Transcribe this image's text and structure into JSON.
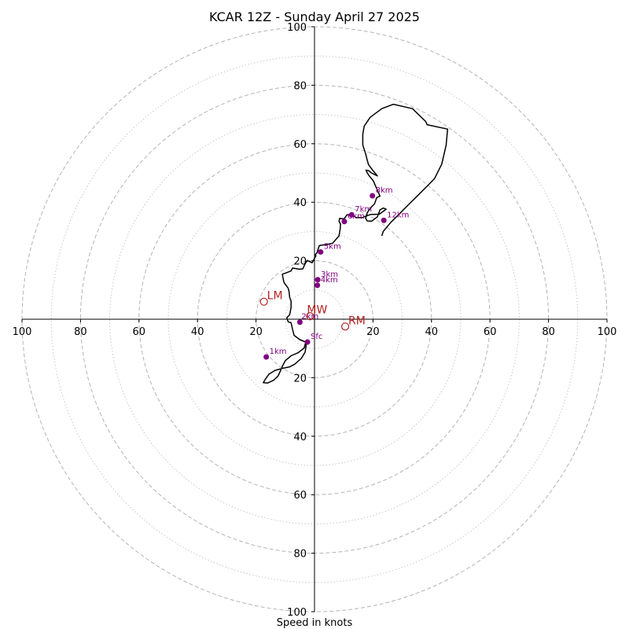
{
  "chart_data": {
    "type": "line",
    "title": "KCAR 12Z - Sunday April 27 2025",
    "xlabel": "Speed in knots",
    "ylabel": "",
    "xlim": [
      -100,
      100
    ],
    "ylim": [
      -100,
      100
    ],
    "major_rings": [
      20,
      40,
      60,
      80,
      100
    ],
    "minor_rings": [
      10,
      30,
      50,
      70,
      90
    ],
    "x_ticks": [
      {
        "v": -100,
        "label": "100"
      },
      {
        "v": -80,
        "label": "80"
      },
      {
        "v": -60,
        "label": "60"
      },
      {
        "v": -40,
        "label": "40"
      },
      {
        "v": -20,
        "label": "20"
      },
      {
        "v": 20,
        "label": "20"
      },
      {
        "v": 40,
        "label": "40"
      },
      {
        "v": 60,
        "label": "60"
      },
      {
        "v": 80,
        "label": "80"
      },
      {
        "v": 100,
        "label": "100"
      }
    ],
    "y_ticks": [
      {
        "v": 100,
        "label": "100"
      },
      {
        "v": 80,
        "label": "80"
      },
      {
        "v": 60,
        "label": "60"
      },
      {
        "v": 40,
        "label": "40"
      },
      {
        "v": 20,
        "label": "20"
      },
      {
        "v": -20,
        "label": "20"
      },
      {
        "v": -40,
        "label": "40"
      },
      {
        "v": -60,
        "label": "60"
      },
      {
        "v": -80,
        "label": "80"
      },
      {
        "v": -100,
        "label": "100"
      }
    ],
    "hodograph": {
      "color": "#000000",
      "x": [
        -2.4,
        -2.8,
        -3.2,
        -4.5,
        -6.8,
        -8.5,
        -11,
        -13.5,
        -15.6,
        -16.8,
        -17.5,
        -16,
        -14,
        -12.5,
        -11.6,
        -11,
        -10,
        -8,
        -5.5,
        -3.5,
        -3,
        -5,
        -7,
        -7.5,
        -8,
        -9,
        -9.5,
        -8.5,
        -8,
        -8,
        -8.5,
        -8.7,
        -9,
        -9.5,
        -10,
        -10.5,
        -11,
        -9.8,
        -8,
        -7.5,
        -5.3,
        -4,
        -3.3,
        -2.5,
        -0.8,
        0,
        0.5,
        0.2,
        0.8,
        1.6,
        2.2,
        4.1,
        6.2,
        8.4,
        8.8,
        8.9,
        8.4,
        8.6,
        10.1,
        11.1,
        12.5,
        14.2,
        16.2,
        17.7,
        19.2,
        22.1,
        24.5,
        23.5,
        22.4,
        21.5,
        19.5,
        18,
        17.5,
        18,
        18.5,
        19.5,
        20.5,
        21.3,
        22.4,
        20.9,
        20.1,
        18.7,
        18.0,
        17.6,
        18.5,
        19.5,
        20.5,
        21.5,
        20.0,
        18.5,
        18.0,
        17.5,
        16.5,
        16.5,
        17.0,
        19.0,
        23.0,
        27.0,
        33.5,
        38.0,
        38.5,
        45.5,
        45.0,
        43.5,
        41.0,
        38.0,
        35.0,
        32.0,
        29.0,
        26.0,
        23.5,
        23.0
      ],
      "y": [
        -7.8,
        -8.5,
        -11.2,
        -13.4,
        -15.4,
        -16.3,
        -16.8,
        -17.5,
        -18.8,
        -20.5,
        -21.7,
        -21.8,
        -20.9,
        -19.5,
        -17.6,
        -16.1,
        -14.2,
        -12.5,
        -11.4,
        -9.8,
        -7.8,
        -7.0,
        -5.5,
        -3.5,
        -1.2,
        -0.9,
        0.5,
        1.5,
        4,
        6.2,
        7.5,
        9.5,
        10.6,
        11.3,
        11.9,
        12.8,
        15.4,
        15.8,
        16.5,
        17.5,
        17.1,
        17.2,
        18.8,
        20.1,
        19.3,
        20.8,
        21.7,
        22.0,
        22.6,
        25.1,
        25.3,
        25.5,
        26.0,
        28.5,
        31.0,
        32.5,
        33.5,
        34.5,
        34.3,
        35.7,
        35.8,
        34.8,
        34.7,
        35.3,
        35.8,
        35.9,
        37.6,
        38.0,
        37.4,
        35.0,
        33.5,
        33.6,
        34.5,
        36.3,
        37.1,
        38.4,
        39.4,
        41.6,
        42.1,
        45.5,
        47.3,
        49.0,
        50.1,
        51.0,
        50.8,
        50.0,
        49.5,
        49.0,
        50.8,
        52.8,
        54.4,
        56.5,
        59.6,
        63.2,
        66.0,
        69.0,
        72.0,
        73.5,
        72.0,
        67.6,
        66.5,
        65.0,
        59.5,
        53.0,
        48.0,
        45.0,
        42.0,
        39.0,
        36.0,
        33.0,
        30.0,
        28.5
      ]
    },
    "height_points": [
      {
        "label": "Sfc",
        "x": -2.4,
        "y": -7.8,
        "dx": 4,
        "dy": -4
      },
      {
        "label": "1km",
        "x": -16.5,
        "y": -12.9,
        "dx": 4,
        "dy": -4
      },
      {
        "label": "2km",
        "x": -5.0,
        "y": -1.0,
        "dx": 2,
        "dy": -4
      },
      {
        "label": "3km",
        "x": 1.1,
        "y": 13.5,
        "dx": 4,
        "dy": -4
      },
      {
        "label": "4km",
        "x": 1.0,
        "y": 11.6,
        "dx": 4,
        "dy": -4
      },
      {
        "label": "5km",
        "x": 2.1,
        "y": 23.0,
        "dx": 4,
        "dy": -4
      },
      {
        "label": "6km",
        "x": 10.2,
        "y": 33.4,
        "dx": 4,
        "dy": -4
      },
      {
        "label": "7km",
        "x": 12.7,
        "y": 35.7,
        "dx": 4,
        "dy": -4
      },
      {
        "label": "8km",
        "x": 19.8,
        "y": 42.2,
        "dx": 4,
        "dy": -4
      },
      {
        "label": "12km",
        "x": 23.7,
        "y": 33.8,
        "dx": 4,
        "dy": -4
      }
    ],
    "height_color": "#800080",
    "storm_motion": [
      {
        "label": "LM",
        "x": -17.3,
        "y": 6.0,
        "dx": 4,
        "dy": -3
      },
      {
        "label": "MW",
        "x": -1.5,
        "y": 1.0,
        "dx": -4,
        "dy": -4
      },
      {
        "label": "RM",
        "x": 10.5,
        "y": -2.5,
        "dx": 4,
        "dy": -3
      }
    ],
    "storm_color": "#b22222",
    "grid": true
  }
}
